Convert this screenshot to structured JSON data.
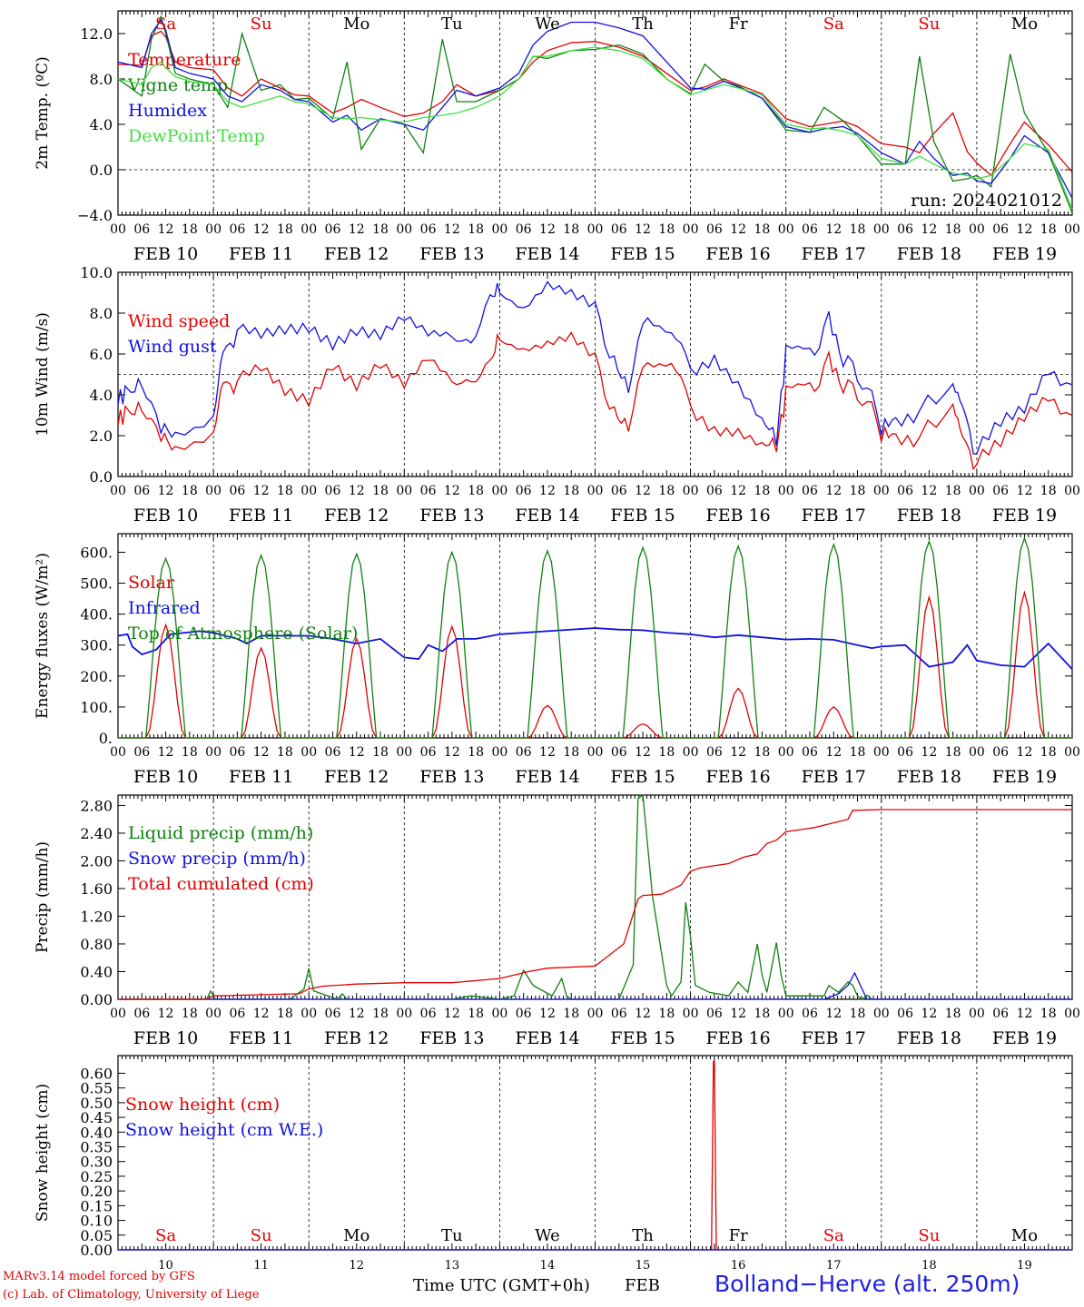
{
  "run_label": "run: 2024021012",
  "bottom_axis": {
    "title": "Time UTC (GMT+0h)",
    "month": "FEB"
  },
  "station_label": "Bolland−Herve (alt. 250m)",
  "credits": [
    "MARv3.14 model forced by GFS",
    "(c) Lab. of Climatology, University of Liege"
  ],
  "colors": {
    "red": "#e00000",
    "green": "#108010",
    "blue": "#1010e0",
    "lightgreen": "#40e040",
    "black": "#000000"
  },
  "time_axis": {
    "x_start_day": 10,
    "x_end_day": 20,
    "hour_ticks": [
      "00",
      "06",
      "12",
      "18"
    ],
    "date_labels": [
      "FEB 10",
      "FEB 11",
      "FEB 12",
      "FEB 13",
      "FEB 14",
      "FEB 15",
      "FEB 16",
      "FEB 17",
      "FEB 18",
      "FEB 19"
    ],
    "weekdays": [
      "Sa",
      "Su",
      "Mo",
      "Tu",
      "We",
      "Th",
      "Fr",
      "Sa",
      "Su",
      "Mo"
    ],
    "weekday_colors": [
      "red",
      "red",
      "black",
      "black",
      "black",
      "black",
      "black",
      "red",
      "red",
      "black"
    ],
    "day_numbers": [
      "10",
      "11",
      "12",
      "13",
      "14",
      "15",
      "16",
      "17",
      "18",
      "19"
    ]
  },
  "chart_data": [
    {
      "type": "line",
      "ylabel": "2m Temp. (ºC)",
      "ylim": [
        -4,
        14
      ],
      "yticks": [
        -4,
        0,
        4,
        8,
        12
      ],
      "ytick_labels": [
        "−4.0",
        "0.0",
        "4.0",
        "8.0",
        "12.0"
      ],
      "ref_line": 0,
      "x_unit": "day of Feb (UTC)",
      "show_weekdays": true,
      "legend_position": "left",
      "x": [
        10.0,
        10.25,
        10.35,
        10.45,
        10.5,
        10.6,
        10.75,
        11.0,
        11.15,
        11.3,
        11.5,
        11.7,
        11.85,
        12.0,
        12.25,
        12.4,
        12.55,
        12.75,
        13.0,
        13.2,
        13.4,
        13.55,
        13.75,
        14.0,
        14.2,
        14.35,
        14.5,
        14.75,
        15.0,
        15.25,
        15.5,
        15.75,
        16.0,
        16.15,
        16.35,
        16.5,
        16.75,
        17.0,
        17.25,
        17.4,
        17.6,
        17.75,
        18.0,
        18.25,
        18.4,
        18.55,
        18.75,
        18.9,
        19.0,
        19.15,
        19.35,
        19.5,
        19.75,
        20.0
      ],
      "series": [
        {
          "name": "Temperature",
          "color": "red",
          "values": [
            9.3,
            9.2,
            11.8,
            12.2,
            11.7,
            9.5,
            9.0,
            8.8,
            7.2,
            6.5,
            8.0,
            7.2,
            6.6,
            6.5,
            5.0,
            5.5,
            6.2,
            5.5,
            4.7,
            5.0,
            6.0,
            7.5,
            6.5,
            7.0,
            8.0,
            9.5,
            10.5,
            11.2,
            11.3,
            10.8,
            10.0,
            8.5,
            7.0,
            7.3,
            8.0,
            7.5,
            6.7,
            4.5,
            3.8,
            4.0,
            4.3,
            3.8,
            2.3,
            2.0,
            1.5,
            3.2,
            5.0,
            1.6,
            0.6,
            -0.5,
            2.3,
            4.2,
            2.2,
            -0.2
          ]
        },
        {
          "name": "Vigne temp",
          "color": "green",
          "values": [
            8.0,
            6.5,
            11.5,
            13.5,
            12.0,
            8.5,
            8.0,
            7.5,
            5.5,
            12.0,
            7.0,
            7.5,
            6.2,
            6.3,
            4.5,
            9.5,
            1.8,
            4.5,
            4.0,
            1.5,
            11.5,
            6.0,
            6.0,
            7.0,
            8.0,
            10.0,
            9.8,
            10.5,
            10.6,
            11.0,
            10.2,
            8.0,
            6.7,
            9.3,
            7.8,
            7.4,
            6.3,
            3.5,
            3.3,
            5.5,
            4.3,
            3.0,
            0.5,
            0.5,
            10.0,
            2.5,
            -1.0,
            -0.8,
            -0.5,
            -1.5,
            10.2,
            5.0,
            1.5,
            -3.8
          ]
        },
        {
          "name": "Humidex",
          "color": "blue",
          "values": [
            9.5,
            9.0,
            12.0,
            13.2,
            12.3,
            9.0,
            8.5,
            8.0,
            6.5,
            6.0,
            7.5,
            7.0,
            6.2,
            6.0,
            4.2,
            4.8,
            3.5,
            4.5,
            4.0,
            3.5,
            5.5,
            7.0,
            6.5,
            7.2,
            8.5,
            11.0,
            12.2,
            13.0,
            13.0,
            12.5,
            11.8,
            9.5,
            7.2,
            7.1,
            7.8,
            7.3,
            6.3,
            3.8,
            3.3,
            3.6,
            3.8,
            3.2,
            1.5,
            0.5,
            2.5,
            1.0,
            -0.5,
            -0.3,
            -1.0,
            -1.2,
            1.0,
            3.0,
            1.5,
            -2.5
          ]
        },
        {
          "name": "DewPoint Temp",
          "color": "lightgreen",
          "values": [
            8.0,
            7.5,
            9.0,
            9.5,
            9.0,
            8.2,
            7.8,
            7.5,
            6.0,
            5.5,
            6.0,
            6.5,
            6.0,
            5.8,
            4.6,
            4.5,
            4.6,
            4.4,
            4.2,
            4.6,
            4.8,
            5.0,
            5.5,
            6.5,
            8.0,
            10.0,
            10.0,
            10.5,
            10.8,
            10.5,
            9.8,
            8.0,
            6.6,
            7.0,
            7.5,
            7.2,
            6.6,
            4.0,
            3.6,
            3.7,
            3.4,
            3.0,
            1.0,
            0.5,
            1.2,
            0.5,
            -0.3,
            -0.5,
            -0.8,
            -0.5,
            1.0,
            2.3,
            1.8,
            -3.5
          ]
        }
      ]
    },
    {
      "type": "line",
      "ylabel": "10m Wind (m/s)",
      "ylim": [
        0,
        10
      ],
      "yticks": [
        0,
        2,
        4,
        6,
        8,
        10
      ],
      "ytick_labels": [
        "0.0",
        "2.0",
        "4.0",
        "6.0",
        "8.0",
        "10.0"
      ],
      "ref_line": 5,
      "x_unit": "day of Feb (UTC)",
      "show_weekdays": false,
      "legend_position": "left",
      "x": [
        10.0,
        10.1,
        10.25,
        10.45,
        10.6,
        10.8,
        11.0,
        11.1,
        11.25,
        11.5,
        11.75,
        12.0,
        12.25,
        12.5,
        12.75,
        13.0,
        13.25,
        13.5,
        13.7,
        13.9,
        14.0,
        14.25,
        14.5,
        14.75,
        15.0,
        15.2,
        15.35,
        15.55,
        15.8,
        16.0,
        16.25,
        16.5,
        16.75,
        16.9,
        17.0,
        17.25,
        17.45,
        17.6,
        17.8,
        18.0,
        18.15,
        18.4,
        18.75,
        18.85,
        19.0,
        19.25,
        19.5,
        19.75,
        20.0
      ],
      "series": [
        {
          "name": "Wind speed",
          "color": "red",
          "values": [
            2.7,
            3.3,
            3.5,
            1.8,
            1.3,
            1.6,
            2.0,
            4.8,
            4.5,
            5.2,
            4.3,
            4.0,
            5.8,
            4.6,
            5.4,
            4.2,
            5.5,
            4.6,
            4.6,
            5.5,
            7.0,
            6.5,
            6.6,
            6.7,
            5.5,
            3.2,
            2.7,
            5.8,
            5.8,
            3.6,
            2.5,
            2.2,
            1.3,
            1.5,
            4.0,
            4.3,
            5.5,
            4.3,
            4.0,
            2.2,
            1.7,
            1.8,
            3.5,
            2.0,
            0.5,
            1.5,
            3.0,
            4.2,
            3.0
          ],
          "smooth_noise": true
        },
        {
          "name": "Wind gust",
          "color": "blue",
          "values": [
            3.7,
            4.3,
            4.7,
            2.2,
            2.0,
            2.3,
            2.8,
            6.3,
            7.0,
            6.8,
            7.3,
            7.6,
            6.8,
            7.3,
            6.8,
            7.5,
            6.7,
            6.8,
            6.5,
            8.7,
            9.3,
            8.5,
            9.5,
            8.8,
            8.0,
            5.7,
            4.6,
            8.0,
            7.3,
            5.4,
            6.0,
            4.5,
            2.5,
            1.8,
            6.0,
            6.0,
            7.5,
            5.6,
            4.8,
            2.5,
            2.5,
            3.1,
            4.5,
            3.5,
            1.0,
            2.5,
            3.4,
            5.5,
            4.5
          ],
          "smooth_noise": true
        }
      ]
    },
    {
      "type": "line",
      "ylabel": "Energy fluxes (W/m²)",
      "ylim": [
        0,
        660
      ],
      "yticks": [
        0,
        100,
        200,
        300,
        400,
        500,
        600
      ],
      "ytick_labels": [
        "0.",
        "100.",
        "200.",
        "300.",
        "400.",
        "500.",
        "600."
      ],
      "ref_line": null,
      "x_unit": "day of Feb (UTC)",
      "show_weekdays": false,
      "legend_position": "left",
      "series": [
        {
          "name": "Solar",
          "color": "red",
          "daily_peaks": [
            365,
            290,
            320,
            360,
            105,
            45,
            160,
            100,
            455,
            470
          ]
        },
        {
          "name": "Infrared",
          "color": "blue",
          "x": [
            10.0,
            10.1,
            10.15,
            10.25,
            10.4,
            10.55,
            10.7,
            10.85,
            11.0,
            11.25,
            11.35,
            11.5,
            11.75,
            12.0,
            12.25,
            12.5,
            12.75,
            13.0,
            13.15,
            13.25,
            13.4,
            13.55,
            13.75,
            14.0,
            14.5,
            15.0,
            15.25,
            15.5,
            15.75,
            16.0,
            16.25,
            16.5,
            16.75,
            17.0,
            17.25,
            17.5,
            17.75,
            17.9,
            18.0,
            18.25,
            18.5,
            18.75,
            18.9,
            19.0,
            19.25,
            19.5,
            19.75,
            20.0
          ],
          "values": [
            330,
            335,
            295,
            270,
            285,
            335,
            340,
            345,
            340,
            320,
            305,
            330,
            330,
            330,
            320,
            305,
            320,
            260,
            255,
            300,
            280,
            320,
            320,
            335,
            345,
            355,
            350,
            348,
            340,
            335,
            325,
            332,
            325,
            318,
            320,
            317,
            300,
            290,
            295,
            300,
            230,
            245,
            300,
            250,
            235,
            230,
            305,
            222
          ]
        },
        {
          "name": "Top of Atmosphere (Solar)",
          "color": "green",
          "daily_peaks": [
            580,
            590,
            595,
            600,
            605,
            615,
            620,
            625,
            635,
            645
          ]
        }
      ]
    },
    {
      "type": "line",
      "ylabel": "Precip (mm/h)",
      "ylim": [
        0,
        2.95
      ],
      "yticks": [
        0,
        0.4,
        0.8,
        1.2,
        1.6,
        2.0,
        2.4,
        2.8
      ],
      "ytick_labels": [
        "0.00",
        "0.40",
        "0.80",
        "1.20",
        "1.60",
        "2.00",
        "2.40",
        "2.80"
      ],
      "ref_line": null,
      "x_unit": "day of Feb (UTC)",
      "show_weekdays": false,
      "legend_position": "left",
      "series": [
        {
          "name": "Liquid precip (mm/h)",
          "color": "green",
          "x": [
            10.0,
            10.93,
            10.97,
            11.02,
            11.8,
            11.95,
            12.0,
            12.05,
            12.3,
            12.35,
            12.4,
            13.5,
            13.7,
            14.0,
            14.15,
            14.25,
            14.35,
            14.55,
            14.65,
            14.7,
            14.75,
            15.0,
            15.25,
            15.4,
            15.45,
            15.5,
            15.6,
            15.75,
            15.8,
            15.9,
            15.95,
            16.0,
            16.05,
            16.2,
            16.4,
            16.5,
            16.6,
            16.7,
            16.75,
            16.8,
            16.9,
            16.95,
            17.0,
            17.4,
            17.45,
            17.55,
            17.65,
            17.7,
            17.75,
            17.8,
            17.85,
            17.9,
            17.95,
            18.0,
            20.0
          ],
          "values": [
            0,
            0,
            0.12,
            0,
            0,
            0.15,
            0.45,
            0.12,
            0,
            0.08,
            0,
            0,
            0.05,
            0,
            0.05,
            0.42,
            0.2,
            0.05,
            0.3,
            0.05,
            0,
            0,
            0,
            0.5,
            2.9,
            2.95,
            1.5,
            0.2,
            0.05,
            0.25,
            1.4,
            0.9,
            0.2,
            0.1,
            0.05,
            0.25,
            0.1,
            0.8,
            0.35,
            0.1,
            0.82,
            0.35,
            0.05,
            0.05,
            0.2,
            0.1,
            0.25,
            0.2,
            0.05,
            0,
            0.06,
            0,
            0,
            0,
            0
          ]
        },
        {
          "name": "Snow precip (mm/h)",
          "color": "blue",
          "x": [
            10.0,
            17.4,
            17.55,
            17.65,
            17.72,
            17.78,
            17.85,
            18.0,
            20.0
          ],
          "values": [
            0,
            0,
            0.08,
            0.2,
            0.38,
            0.2,
            0,
            0,
            0
          ]
        },
        {
          "name": "Total cumulated (cm)",
          "color": "red",
          "x": [
            10.0,
            10.93,
            11.0,
            11.9,
            12.0,
            12.15,
            12.5,
            13.0,
            13.5,
            14.0,
            14.3,
            14.5,
            15.0,
            15.3,
            15.45,
            15.5,
            15.7,
            15.9,
            16.0,
            16.1,
            16.4,
            16.55,
            16.7,
            16.8,
            16.9,
            17.0,
            17.3,
            17.5,
            17.65,
            17.7,
            18.0,
            20.0
          ],
          "values": [
            0,
            0,
            0.05,
            0.08,
            0.15,
            0.19,
            0.22,
            0.24,
            0.24,
            0.3,
            0.4,
            0.45,
            0.48,
            0.8,
            1.45,
            1.5,
            1.52,
            1.65,
            1.85,
            1.9,
            1.96,
            2.05,
            2.1,
            2.25,
            2.3,
            2.42,
            2.48,
            2.55,
            2.6,
            2.73,
            2.74,
            2.74
          ]
        }
      ]
    },
    {
      "type": "line",
      "ylabel": "Snow height (cm)",
      "ylim": [
        0,
        0.66
      ],
      "yticks": [
        0,
        0.05,
        0.1,
        0.15,
        0.2,
        0.25,
        0.3,
        0.35,
        0.4,
        0.45,
        0.5,
        0.55,
        0.6
      ],
      "ytick_labels": [
        "0.00",
        "0.05",
        "0.10",
        "0.15",
        "0.20",
        "0.25",
        "0.30",
        "0.35",
        "0.40",
        "0.45",
        "0.50",
        "0.55",
        "0.60"
      ],
      "ref_line": null,
      "x_unit": "day of Feb (UTC)",
      "show_weekdays": true,
      "legend_position": "left",
      "series": [
        {
          "name": "Snow height (cm)",
          "color": "red",
          "x": [
            10.0,
            16.22,
            16.24,
            16.25,
            16.27,
            20.0
          ],
          "values": [
            0,
            0,
            0.64,
            0.64,
            0,
            0
          ]
        },
        {
          "name": "Snow height (cm W.E.)",
          "color": "blue",
          "x": [
            10.0,
            20.0
          ],
          "values": [
            0,
            0
          ]
        }
      ]
    }
  ]
}
